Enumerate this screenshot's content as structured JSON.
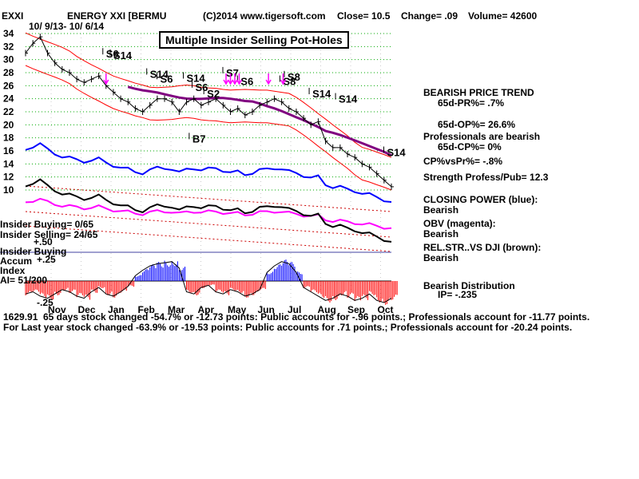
{
  "header": {
    "ticker": "EXXI",
    "name": "ENERGY XXI [BERMU",
    "copyright": "(C)2014 www.tigersoft.com",
    "close": "Close= 10.5",
    "change": "Change= .09",
    "volume": "Volume= 42600",
    "date_range": "10/ 9/13- 10/ 6/14"
  },
  "title": "Multiple Insider Selling Pot-Holes",
  "colors": {
    "price": "#000000",
    "band": "#ff0000",
    "ma": "#800080",
    "closing_power": "#0000ff",
    "obv": "#ff00ff",
    "relstr": "#000000",
    "grid": "#00aa00",
    "accum_pos": "#0000ff",
    "accum_neg": "#ff0000",
    "insider_arrow": "#ff00ff",
    "dotted": "#cc0000"
  },
  "indicators": [
    {
      "line": "BEARISH PRICE TREND"
    },
    {
      "line": "65d-PR%= .7%"
    },
    {
      "line": "65d-OP%= 26.6%"
    },
    {
      "line": "Professionals are bearish"
    },
    {
      "line": "65d-CP%= 0%"
    },
    {
      "line": "CP%vsPr%= -.8%"
    },
    {
      "line": "Strength Profess/Pub= 12.3"
    },
    {
      "line": "CLOSING POWER (blue):"
    },
    {
      "line": "Bearish"
    },
    {
      "line": "OBV (magenta):"
    },
    {
      "line": "Bearish"
    },
    {
      "line": "REL.STR..VS DJI (brown):"
    },
    {
      "line": "Bearish"
    },
    {
      "line": "Bearish Distribution"
    },
    {
      "line": "IP= -.235"
    }
  ],
  "insider": {
    "buying": "Insider Buying= 0/65",
    "selling": "Insider Selling= 24/65",
    "plus50": "+.50",
    "buying2": "Insider Buying",
    "accum": "Accum",
    "p25": "+.25",
    "index": "Index",
    "ai": "AI= 51/200",
    "m25": "-.25"
  },
  "footer": {
    "line1a": "1629.91",
    "line1b": "65 days stock changed -54.7% or -12.73 points:  Public accounts for -.96 points.;  Professionals account for -11.77 points.",
    "line2": "For Last year stock changed -63.9% or -19.53 points:  Public accounts for  .71 points.;  Professionals account for -20.24 points."
  },
  "chart_data": {
    "type": "line",
    "x_ticks": [
      "Nov",
      "Dec",
      "Jan",
      "Feb",
      "Mar",
      "Apr",
      "May",
      "Jun",
      "Jul",
      "Aug",
      "Sep",
      "Oct"
    ],
    "y_ticks": [
      "34",
      "32",
      "30",
      "28",
      "26",
      "24",
      "22",
      "20",
      "18",
      "16",
      "14",
      "12",
      "10"
    ],
    "ylim": [
      10,
      34
    ],
    "grid": true,
    "price_series": {
      "x": [
        0,
        5,
        10,
        15,
        20,
        25,
        30,
        35,
        40,
        45,
        50,
        55,
        60,
        65,
        70,
        75,
        80,
        85,
        90,
        95,
        100,
        105,
        110,
        115,
        120,
        125,
        130,
        135,
        140,
        145,
        150,
        155,
        160,
        165,
        170,
        175,
        180,
        185,
        190,
        195,
        200,
        205,
        210,
        215,
        220,
        225,
        230,
        235,
        240,
        245,
        250
      ],
      "y": [
        31,
        32.5,
        33.5,
        31,
        29.5,
        28.5,
        28,
        27,
        26.5,
        27,
        27.5,
        26,
        25,
        24,
        23.5,
        22.5,
        22,
        23,
        24,
        24,
        23.5,
        22,
        23.5,
        24,
        23,
        23.5,
        24,
        23,
        22,
        22.5,
        21.5,
        22,
        23,
        23.5,
        24,
        23.5,
        22.5,
        22,
        21,
        20,
        20.5,
        17.5,
        16.5,
        16.5,
        15.5,
        15,
        14,
        13.5,
        12.5,
        11.5,
        10.5
      ]
    },
    "signals": [
      {
        "label": "S6",
        "x": 55,
        "y": 30.3
      },
      {
        "label": "S14",
        "x": 60,
        "y": 30.1
      },
      {
        "label": "S14",
        "x": 85,
        "y": 27.2
      },
      {
        "label": "S6",
        "x": 92,
        "y": 26.5
      },
      {
        "label": "S14",
        "x": 110,
        "y": 26.6
      },
      {
        "label": "S6",
        "x": 116,
        "y": 25.2
      },
      {
        "label": "S2",
        "x": 124,
        "y": 24.2
      },
      {
        "label": "S7",
        "x": 137,
        "y": 27.4
      },
      {
        "label": "S6",
        "x": 147,
        "y": 26.1
      },
      {
        "label": "S8",
        "x": 179,
        "y": 26.8
      },
      {
        "label": "S8",
        "x": 176,
        "y": 26.1
      },
      {
        "label": "S14",
        "x": 196,
        "y": 24.2
      },
      {
        "label": "S14",
        "x": 214,
        "y": 23.4
      },
      {
        "label": "B7",
        "x": 114,
        "y": 17.3
      },
      {
        "label": "S14",
        "x": 247,
        "y": 15.2
      }
    ],
    "accum_bands": [
      {
        "x": 0,
        "v": -0.12
      },
      {
        "x": 5,
        "v": -0.1
      },
      {
        "x": 10,
        "v": -0.14
      },
      {
        "x": 15,
        "v": -0.16
      },
      {
        "x": 20,
        "v": -0.12
      },
      {
        "x": 25,
        "v": -0.08
      },
      {
        "x": 30,
        "v": -0.1
      },
      {
        "x": 35,
        "v": -0.14
      },
      {
        "x": 40,
        "v": -0.16
      },
      {
        "x": 45,
        "v": -0.1
      },
      {
        "x": 50,
        "v": -0.06
      },
      {
        "x": 55,
        "v": -0.12
      },
      {
        "x": 60,
        "v": -0.14
      },
      {
        "x": 65,
        "v": -0.1
      },
      {
        "x": 70,
        "v": -0.05
      },
      {
        "x": 75,
        "v": 0.05
      },
      {
        "x": 80,
        "v": 0.1
      },
      {
        "x": 85,
        "v": 0.14
      },
      {
        "x": 90,
        "v": 0.16
      },
      {
        "x": 95,
        "v": 0.17
      },
      {
        "x": 100,
        "v": 0.18
      },
      {
        "x": 105,
        "v": 0.12
      },
      {
        "x": 110,
        "v": -0.1
      },
      {
        "x": 115,
        "v": -0.12
      },
      {
        "x": 120,
        "v": -0.06
      },
      {
        "x": 125,
        "v": -0.04
      },
      {
        "x": 130,
        "v": -0.1
      },
      {
        "x": 135,
        "v": -0.12
      },
      {
        "x": 140,
        "v": -0.08
      },
      {
        "x": 145,
        "v": -0.1
      },
      {
        "x": 150,
        "v": -0.14
      },
      {
        "x": 155,
        "v": -0.12
      },
      {
        "x": 160,
        "v": -0.08
      },
      {
        "x": 165,
        "v": 0.08
      },
      {
        "x": 170,
        "v": 0.14
      },
      {
        "x": 175,
        "v": 0.18
      },
      {
        "x": 180,
        "v": 0.16
      },
      {
        "x": 185,
        "v": 0.08
      },
      {
        "x": 190,
        "v": -0.06
      },
      {
        "x": 195,
        "v": -0.1
      },
      {
        "x": 200,
        "v": -0.14
      },
      {
        "x": 205,
        "v": -0.18
      },
      {
        "x": 210,
        "v": -0.16
      },
      {
        "x": 215,
        "v": -0.12
      },
      {
        "x": 220,
        "v": -0.14
      },
      {
        "x": 225,
        "v": -0.18
      },
      {
        "x": 230,
        "v": -0.16
      },
      {
        "x": 235,
        "v": -0.12
      },
      {
        "x": 240,
        "v": -0.18
      },
      {
        "x": 245,
        "v": -0.2
      },
      {
        "x": 250,
        "v": -0.16
      }
    ]
  }
}
